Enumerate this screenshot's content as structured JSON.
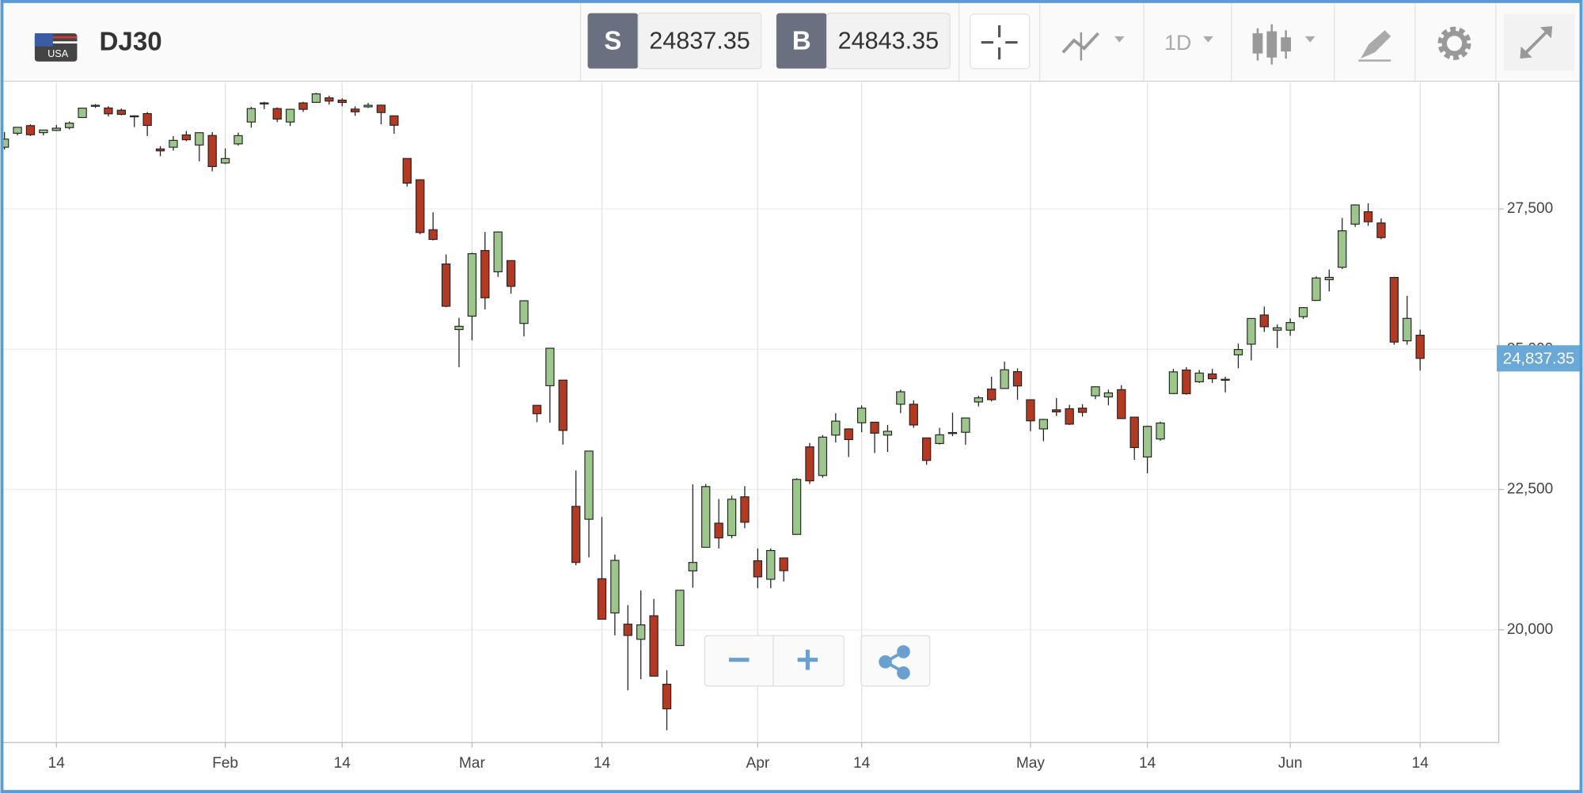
{
  "toolbar": {
    "flag": "USA",
    "symbol": "DJ30",
    "sell_label": "S",
    "sell_price": 24837.35,
    "buy_label": "B",
    "buy_price": 24843.35,
    "timeframe": "1D"
  },
  "chart_data": {
    "type": "candlestick",
    "categories": [
      null,
      null,
      null,
      null,
      "14",
      null,
      null,
      null,
      null,
      null,
      null,
      null,
      null,
      null,
      null,
      null,
      null,
      "Feb",
      null,
      null,
      null,
      null,
      null,
      null,
      null,
      null,
      "14",
      null,
      null,
      null,
      null,
      null,
      null,
      null,
      null,
      null,
      "Mar",
      null,
      null,
      null,
      null,
      null,
      null,
      null,
      null,
      null,
      "14",
      null,
      null,
      null,
      null,
      null,
      null,
      null,
      null,
      null,
      null,
      null,
      "Apr",
      null,
      null,
      null,
      null,
      null,
      null,
      null,
      "14",
      null,
      null,
      null,
      null,
      null,
      null,
      null,
      null,
      null,
      null,
      null,
      null,
      "May",
      null,
      null,
      null,
      null,
      null,
      null,
      null,
      null,
      "14",
      null,
      null,
      null,
      null,
      null,
      null,
      null,
      null,
      null,
      null,
      "Jun",
      null,
      null,
      null,
      null,
      null,
      null,
      null,
      null,
      null,
      "14"
    ],
    "open": [
      28600,
      28850,
      28985,
      28860,
      28900,
      28950,
      29130,
      29340,
      29300,
      29260,
      29150,
      29200,
      28570,
      28600,
      28820,
      28640,
      28810,
      28320,
      28660,
      29050,
      29390,
      29290,
      29050,
      29390,
      29400,
      29480,
      29440,
      29280,
      29320,
      29350,
      29160,
      28400,
      28020,
      27130,
      26520,
      25350,
      25590,
      26760,
      26380,
      26580,
      25460,
      24000,
      24350,
      24450,
      22200,
      21970,
      20910,
      20300,
      20100,
      19830,
      20250,
      19030,
      19720,
      21050,
      21470,
      21900,
      21680,
      22370,
      21230,
      20900,
      21280,
      21700,
      23260,
      22750,
      23470,
      23580,
      23690,
      23700,
      23470,
      24020,
      24020,
      23420,
      23320,
      23500,
      23520,
      24060,
      24290,
      24300,
      24600,
      24100,
      23580,
      23920,
      23940,
      23950,
      24170,
      24150,
      24280,
      23790,
      23080,
      23400,
      24210,
      24630,
      24420,
      24560,
      24460,
      24900,
      25090,
      25610,
      25340,
      25340,
      25580,
      25870,
      26240,
      26460,
      27230,
      27450,
      27250,
      26280,
      25150,
      25250
    ],
    "high": [
      28870,
      28960,
      29009,
      28910,
      29000,
      29060,
      29300,
      29370,
      29330,
      29290,
      29170,
      29230,
      28620,
      28800,
      28890,
      28860,
      28870,
      28580,
      28860,
      29320,
      29410,
      29310,
      29280,
      29410,
      29570,
      29520,
      29470,
      29330,
      29390,
      29360,
      29160,
      28400,
      28030,
      27440,
      26690,
      25560,
      26720,
      27090,
      27100,
      26580,
      25800,
      24000,
      25020,
      24450,
      22840,
      23190,
      22010,
      21340,
      20440,
      20700,
      20550,
      19280,
      20710,
      22590,
      22600,
      22330,
      22390,
      22560,
      21450,
      21450,
      21280,
      22700,
      23330,
      23470,
      23860,
      23590,
      24000,
      23700,
      23650,
      24280,
      24090,
      23420,
      23600,
      23870,
      23780,
      24170,
      24510,
      24780,
      24660,
      24100,
      23760,
      24130,
      24010,
      24020,
      24260,
      24280,
      24360,
      23790,
      23640,
      23710,
      24650,
      24680,
      24630,
      24650,
      24510,
      25100,
      25550,
      25760,
      25440,
      25550,
      25750,
      26300,
      26420,
      27340,
      27580,
      27600,
      27330,
      26290,
      25950,
      25350
    ],
    "low": [
      28560,
      28810,
      28800,
      28810,
      28890,
      28920,
      29130,
      29300,
      29150,
      29170,
      28960,
      28800,
      28440,
      28540,
      28710,
      28350,
      28170,
      28300,
      28630,
      28950,
      29280,
      29050,
      28980,
      29230,
      29390,
      29360,
      29330,
      29160,
      29300,
      29010,
      28840,
      27900,
      27050,
      26940,
      25750,
      24680,
      25160,
      25710,
      26290,
      25990,
      25230,
      23700,
      23690,
      23300,
      21150,
      21290,
      20190,
      19900,
      18920,
      19120,
      19170,
      18210,
      19720,
      20750,
      21470,
      21450,
      21630,
      21810,
      20740,
      20740,
      20860,
      21700,
      22600,
      22710,
      23340,
      23080,
      23520,
      23150,
      23170,
      23860,
      23600,
      22940,
      23300,
      23450,
      23300,
      23980,
      24070,
      24300,
      24100,
      23540,
      23360,
      23810,
      23650,
      23800,
      24110,
      24000,
      23760,
      23030,
      22790,
      23370,
      24200,
      24190,
      24400,
      24400,
      24230,
      24660,
      24800,
      25310,
      25020,
      25240,
      25540,
      25860,
      26030,
      26430,
      27180,
      27200,
      26960,
      25080,
      25080,
      24620
    ],
    "close": [
      28745,
      28956,
      28823,
      28907,
      28940,
      29030,
      29297,
      29348,
      29196,
      29186,
      29160,
      28989,
      28535,
      28723,
      28734,
      28859,
      28256,
      28399,
      28807,
      29290,
      29380,
      29102,
      29276,
      29276,
      29551,
      29423,
      29398,
      29232,
      29348,
      29219,
      28992,
      27961,
      27081,
      26957,
      25766,
      25409,
      26703,
      25917,
      27090,
      26121,
      25864,
      23851,
      25018,
      23553,
      21200,
      23185,
      20189,
      21237,
      19899,
      20087,
      19174,
      18591,
      20704,
      21200,
      22552,
      21637,
      22327,
      21917,
      20943,
      21413,
      21053,
      22680,
      22654,
      23434,
      23719,
      23390,
      23950,
      23504,
      23538,
      24242,
      23650,
      23018,
      23475,
      23515,
      23775,
      24134,
      24101,
      24634,
      24345,
      23724,
      23749,
      23883,
      23665,
      23875,
      24331,
      24222,
      23764,
      23248,
      23625,
      23685,
      24597,
      24207,
      24575,
      24474,
      24465,
      24995,
      25548,
      25401,
      25383,
      25475,
      25742,
      26270,
      26281,
      27111,
      27572,
      27272,
      26990,
      25128,
      25550,
      24837
    ],
    "up_color": "#9cc68c",
    "down_color": "#b23a23",
    "current_color": "#6aa8d8",
    "ylim": [
      17990,
      29750
    ],
    "yticks": [
      {
        "value": 20000,
        "label": "20,000"
      },
      {
        "value": 22500,
        "label": "22,500"
      },
      {
        "value": 25000,
        "label": "25,000"
      },
      {
        "value": 27500,
        "label": "27,500"
      }
    ],
    "current_price": {
      "value": 24837.35,
      "label": "24,837.35"
    },
    "grid": true
  }
}
